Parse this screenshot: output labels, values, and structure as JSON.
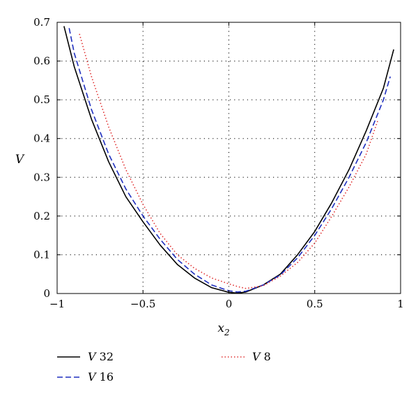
{
  "chart_data": {
    "type": "line",
    "title": "",
    "xlabel": "x",
    "xlabel_sub": "2",
    "ylabel": "V",
    "xlim": [
      -1,
      1
    ],
    "ylim": [
      0,
      0.7
    ],
    "xticks": [
      -1,
      -0.5,
      0,
      0.5,
      1
    ],
    "xtick_labels": [
      "−1",
      "−0.5",
      "0",
      "0.5",
      "1"
    ],
    "yticks": [
      0,
      0.1,
      0.2,
      0.3,
      0.4,
      0.5,
      0.6,
      0.7
    ],
    "ytick_labels": [
      "0",
      "0.1",
      "0.2",
      "0.3",
      "0.4",
      "0.5",
      "0.6",
      "0.7"
    ],
    "grid": true,
    "legend_position": "bottom",
    "series": [
      {
        "name": "V 32",
        "color": "#000000",
        "style": "solid",
        "x": [
          -0.96,
          -0.9,
          -0.8,
          -0.7,
          -0.6,
          -0.5,
          -0.4,
          -0.3,
          -0.2,
          -0.1,
          0.0,
          0.05,
          0.1,
          0.2,
          0.3,
          0.4,
          0.5,
          0.6,
          0.7,
          0.8,
          0.9,
          0.96
        ],
        "y": [
          0.69,
          0.585,
          0.45,
          0.34,
          0.25,
          0.185,
          0.125,
          0.075,
          0.04,
          0.015,
          0.003,
          0.001,
          0.004,
          0.022,
          0.05,
          0.1,
          0.16,
          0.235,
          0.32,
          0.42,
          0.53,
          0.63
        ]
      },
      {
        "name": "V 16",
        "color": "#1f2fbf",
        "style": "dashed",
        "x": [
          -0.93,
          -0.9,
          -0.8,
          -0.7,
          -0.6,
          -0.5,
          -0.4,
          -0.3,
          -0.2,
          -0.1,
          0.0,
          0.05,
          0.1,
          0.2,
          0.3,
          0.4,
          0.5,
          0.6,
          0.7,
          0.8,
          0.9,
          0.94
        ],
        "y": [
          0.685,
          0.62,
          0.475,
          0.36,
          0.27,
          0.2,
          0.14,
          0.088,
          0.05,
          0.022,
          0.007,
          0.004,
          0.006,
          0.022,
          0.048,
          0.092,
          0.15,
          0.22,
          0.3,
          0.39,
          0.5,
          0.56
        ]
      },
      {
        "name": "V 8",
        "color": "#e03030",
        "style": "dotted",
        "x": [
          -0.87,
          -0.8,
          -0.7,
          -0.6,
          -0.5,
          -0.4,
          -0.3,
          -0.2,
          -0.1,
          0.0,
          0.05,
          0.1,
          0.2,
          0.3,
          0.4,
          0.5,
          0.6,
          0.7,
          0.8,
          0.87
        ],
        "y": [
          0.67,
          0.56,
          0.43,
          0.32,
          0.23,
          0.155,
          0.1,
          0.065,
          0.04,
          0.025,
          0.018,
          0.013,
          0.02,
          0.045,
          0.08,
          0.13,
          0.2,
          0.275,
          0.36,
          0.45
        ]
      }
    ]
  }
}
